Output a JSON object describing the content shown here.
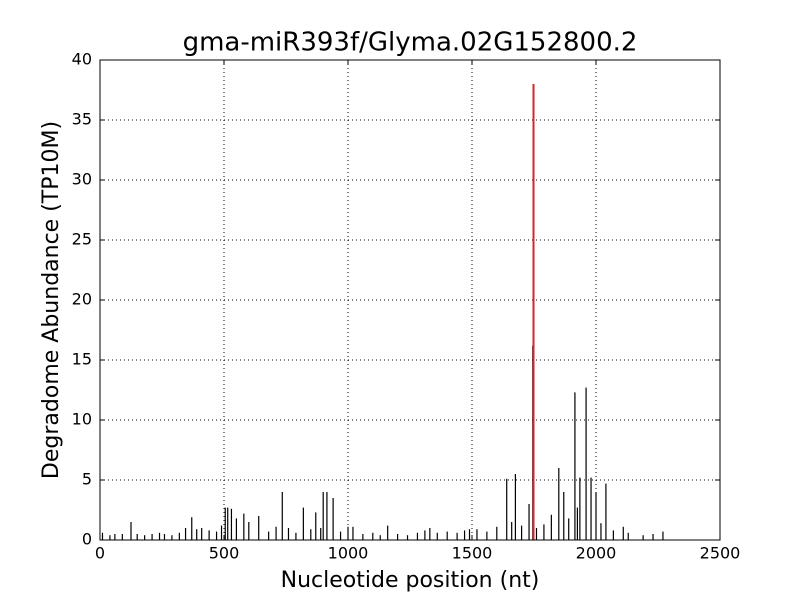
{
  "chart_data": {
    "type": "stem",
    "title": "gma-miR393f/Glyma.02G152800.2",
    "xlabel": "Nucleotide position (nt)",
    "ylabel": "Degradome Abundance (TP10M)",
    "xlim": [
      0,
      2500
    ],
    "ylim": [
      0,
      40
    ],
    "xticks": [
      0,
      500,
      1000,
      1500,
      2000,
      2500
    ],
    "yticks": [
      0,
      5,
      10,
      15,
      20,
      25,
      30,
      35,
      40
    ],
    "grid": true,
    "series": [
      {
        "color": "#000000",
        "x": [
          10,
          40,
          60,
          90,
          125,
          150,
          180,
          210,
          240,
          260,
          290,
          320,
          345,
          370,
          390,
          410,
          440,
          470,
          490,
          505,
          515,
          530,
          550,
          580,
          600,
          640,
          680,
          710,
          735,
          760,
          790,
          820,
          850,
          870,
          890,
          900,
          915,
          940,
          970,
          1000,
          1020,
          1060,
          1100,
          1130,
          1160,
          1200,
          1240,
          1280,
          1310,
          1330,
          1360,
          1400,
          1440,
          1470,
          1490,
          1520,
          1560,
          1600,
          1640,
          1660,
          1675,
          1700,
          1730,
          1745,
          1760,
          1790,
          1820,
          1850,
          1870,
          1890,
          1915,
          1925,
          1935,
          1960,
          1980,
          2000,
          2020,
          2040,
          2070,
          2110,
          2130,
          2190,
          2230,
          2270
        ],
        "values": [
          0.6,
          0.4,
          0.5,
          0.5,
          1.5,
          0.5,
          0.4,
          0.5,
          0.6,
          0.5,
          0.4,
          0.6,
          1.0,
          1.9,
          0.9,
          1.0,
          0.8,
          0.7,
          1.2,
          2.7,
          2.7,
          2.6,
          1.8,
          2.2,
          1.5,
          2.0,
          0.7,
          1.1,
          4.0,
          1.0,
          0.6,
          2.7,
          0.9,
          2.3,
          1.0,
          4.0,
          4.0,
          3.5,
          0.7,
          1.1,
          1.1,
          0.5,
          0.6,
          0.4,
          1.2,
          0.5,
          0.4,
          0.6,
          0.8,
          1.0,
          0.6,
          0.7,
          0.6,
          0.8,
          0.9,
          0.9,
          0.7,
          1.1,
          5.1,
          1.5,
          5.5,
          1.2,
          3.0,
          16.2,
          1.0,
          1.3,
          2.1,
          6.0,
          4.0,
          1.8,
          12.3,
          2.7,
          5.2,
          12.7,
          5.2,
          4.0,
          1.4,
          4.7,
          0.8,
          1.1,
          0.6,
          0.4,
          0.5,
          0.7
        ]
      },
      {
        "color": "#d62728",
        "x": [
          1748
        ],
        "values": [
          38
        ]
      }
    ]
  }
}
